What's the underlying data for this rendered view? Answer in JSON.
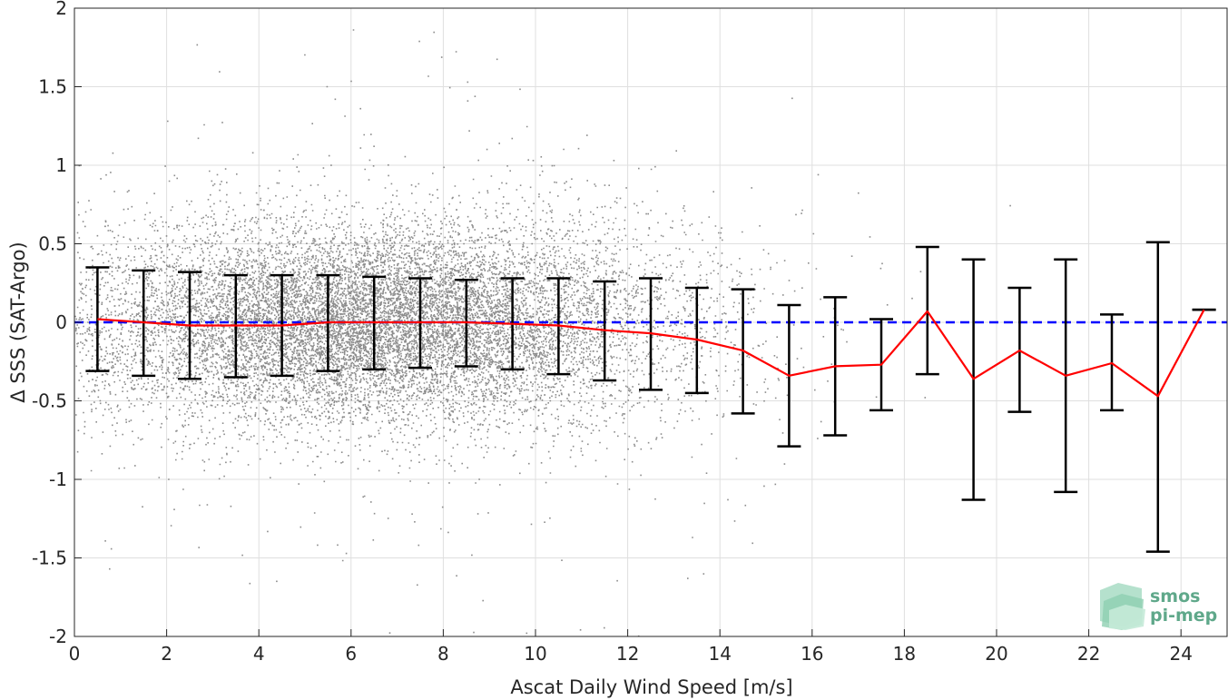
{
  "chart_data": {
    "type": "scatter",
    "title": "",
    "xlabel": "Ascat Daily Wind Speed [m/s]",
    "ylabel": "Δ SSS (SAT-Argo)",
    "xlim": [
      0,
      25
    ],
    "ylim": [
      -2,
      2
    ],
    "x_ticks": [
      0,
      2,
      4,
      6,
      8,
      10,
      12,
      14,
      16,
      18,
      20,
      22,
      24
    ],
    "y_ticks": [
      2,
      1.5,
      1,
      0.5,
      0,
      -0.5,
      -1,
      -1.5,
      -2
    ],
    "grid": true,
    "colors": {
      "scatter_points": "#808080",
      "mean_line": "#ff0000",
      "zero_line": "#0000ff",
      "error_bars": "#000000",
      "logo": "#5fa88a"
    },
    "series": [
      {
        "type": "scatter",
        "description_density": "dense cloud of match-up points concentrated between 1 and 13 m/s, thinning toward higher wind speeds"
      },
      {
        "type": "line",
        "style": "red solid",
        "x": [
          0.5,
          1.5,
          2.5,
          3.5,
          4.5,
          5.5,
          6.5,
          7.5,
          8.5,
          9.5,
          10.5,
          11.5,
          12.5,
          13.5,
          14.5,
          15.5,
          16.5,
          17.5,
          18.5,
          19.5,
          20.5,
          21.5,
          22.5,
          23.5,
          24.5
        ],
        "y": [
          0.02,
          0.0,
          -0.02,
          -0.02,
          -0.02,
          0.0,
          0.0,
          0.0,
          0.0,
          -0.01,
          -0.02,
          -0.05,
          -0.07,
          -0.11,
          -0.18,
          -0.34,
          -0.28,
          -0.27,
          0.07,
          -0.36,
          -0.18,
          -0.34,
          -0.26,
          -0.47,
          0.08
        ]
      },
      {
        "type": "errorbar",
        "style": "black",
        "x": [
          0.5,
          1.5,
          2.5,
          3.5,
          4.5,
          5.5,
          6.5,
          7.5,
          8.5,
          9.5,
          10.5,
          11.5,
          12.5,
          13.5,
          14.5,
          15.5,
          16.5,
          17.5,
          18.5,
          19.5,
          20.5,
          21.5,
          22.5,
          23.5,
          24.5
        ],
        "upper": [
          0.35,
          0.33,
          0.32,
          0.3,
          0.3,
          0.3,
          0.29,
          0.28,
          0.27,
          0.28,
          0.28,
          0.26,
          0.28,
          0.22,
          0.21,
          0.11,
          0.16,
          0.02,
          0.48,
          0.4,
          0.22,
          0.4,
          0.05,
          0.51,
          0.08
        ],
        "lower": [
          -0.31,
          -0.34,
          -0.36,
          -0.35,
          -0.34,
          -0.31,
          -0.3,
          -0.29,
          -0.28,
          -0.3,
          -0.33,
          -0.37,
          -0.43,
          -0.45,
          -0.58,
          -0.79,
          -0.72,
          -0.56,
          -0.33,
          -1.13,
          -0.57,
          -1.08,
          -0.56,
          -1.46,
          0.08
        ]
      },
      {
        "type": "line",
        "style": "blue dashed",
        "y_constant": 0
      }
    ]
  },
  "logo": {
    "line1": "smos",
    "line2": "pi-mep"
  }
}
